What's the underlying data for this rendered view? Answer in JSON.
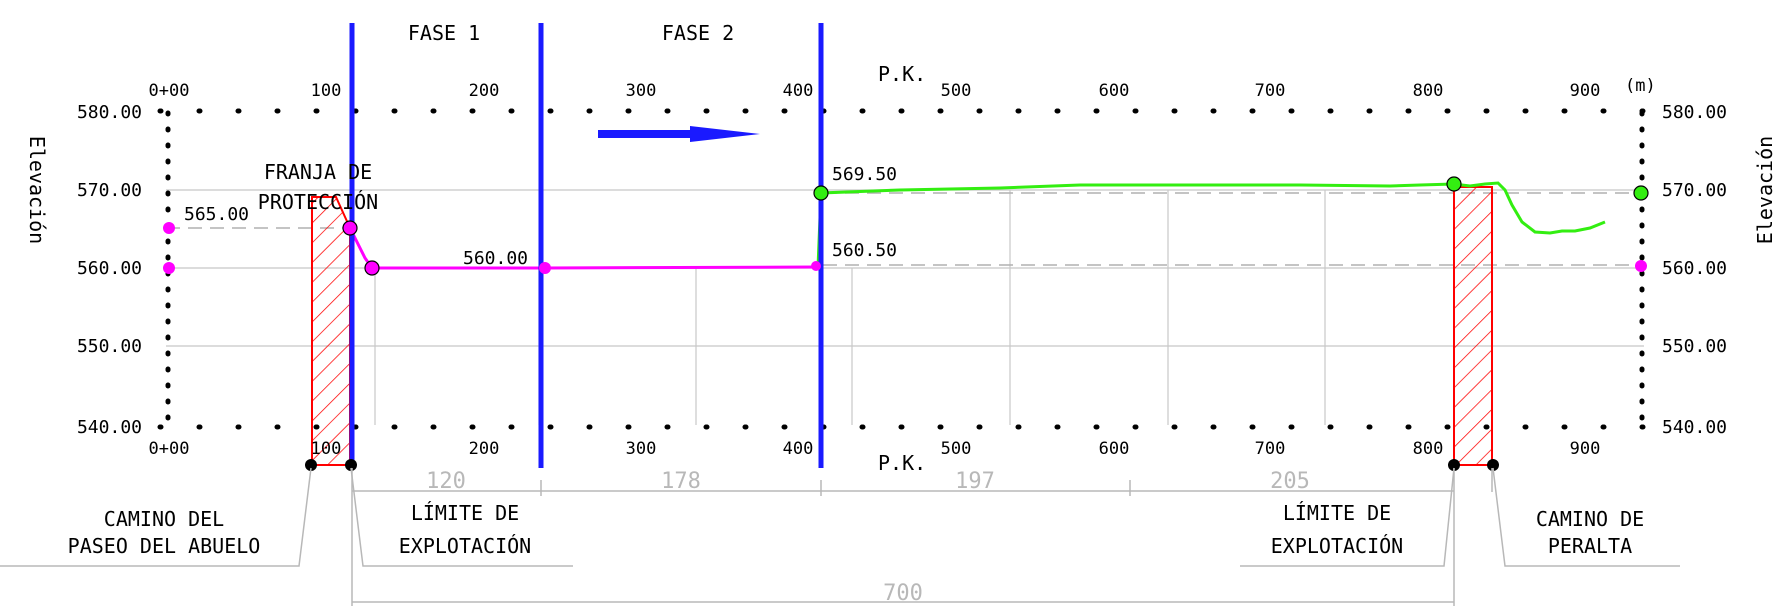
{
  "phases": [
    "FASE 1",
    "FASE 2"
  ],
  "pk_label": "P.K.",
  "unit_label": "(m)",
  "axis_label": "Elevación",
  "elevations": [
    "580.00",
    "570.00",
    "560.00",
    "550.00",
    "540.00"
  ],
  "pk_ticks": [
    "0+00",
    "100",
    "200",
    "300",
    "400",
    "500",
    "600",
    "700",
    "800",
    "900"
  ],
  "point_labels": {
    "p565": "565.00",
    "p560": "560.00",
    "p569": "569.50",
    "p5605": "560.50"
  },
  "annotations": {
    "franja_l1": "FRANJA DE",
    "franja_l2": "PROTECCIÓN",
    "camino_abuelo_l1": "CAMINO DEL",
    "camino_abuelo_l2": "PASEO DEL ABUELO",
    "limite1_l1": "LÍMITE DE",
    "limite1_l2": "EXPLOTACIÓN",
    "limite2_l1": "LÍMITE DE",
    "limite2_l2": "EXPLOTACIÓN",
    "camino_peralta_l1": "CAMINO DE",
    "camino_peralta_l2": "PERALTA"
  },
  "dimensions": {
    "d1": "120",
    "d2": "178",
    "d3": "197",
    "d4": "205",
    "total": "700"
  },
  "colors": {
    "phase_line": "#1a1aff",
    "fase2_profile": "#ff00ff",
    "fase1_profile": "#33ee11",
    "hatch": "#ff0000",
    "grid": "#c8c8c8",
    "dim": "#b8b8b8"
  }
}
